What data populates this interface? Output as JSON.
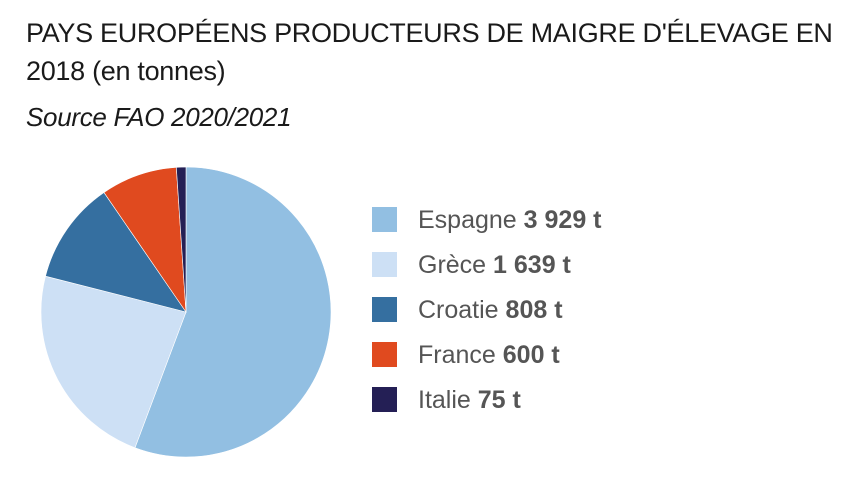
{
  "title": "PAYS EUROPÉENS PRODUCTEURS DE MAIGRE D'ÉLEVAGE EN 2018 (en tonnes)",
  "subtitle": "Source FAO 2020/2021",
  "chart_data": {
    "type": "pie",
    "title": "PAYS EUROPÉENS PRODUCTEURS DE MAIGRE D'ÉLEVAGE EN 2018 (en tonnes)",
    "subtitle": "Source FAO 2020/2021",
    "unit": "t",
    "legend_position": "right",
    "slices": [
      {
        "label": "Espagne",
        "value": 3929,
        "value_label": "3 929 t",
        "color": "#92bfe2"
      },
      {
        "label": "Grèce",
        "value": 1639,
        "value_label": "1 639 t",
        "color": "#cde0f5"
      },
      {
        "label": "Croatie",
        "value": 808,
        "value_label": "808 t",
        "color": "#356fa0"
      },
      {
        "label": "France",
        "value": 600,
        "value_label": "600 t",
        "color": "#e04a1f"
      },
      {
        "label": "Italie",
        "value": 75,
        "value_label": "75 t",
        "color": "#241f55"
      }
    ]
  }
}
